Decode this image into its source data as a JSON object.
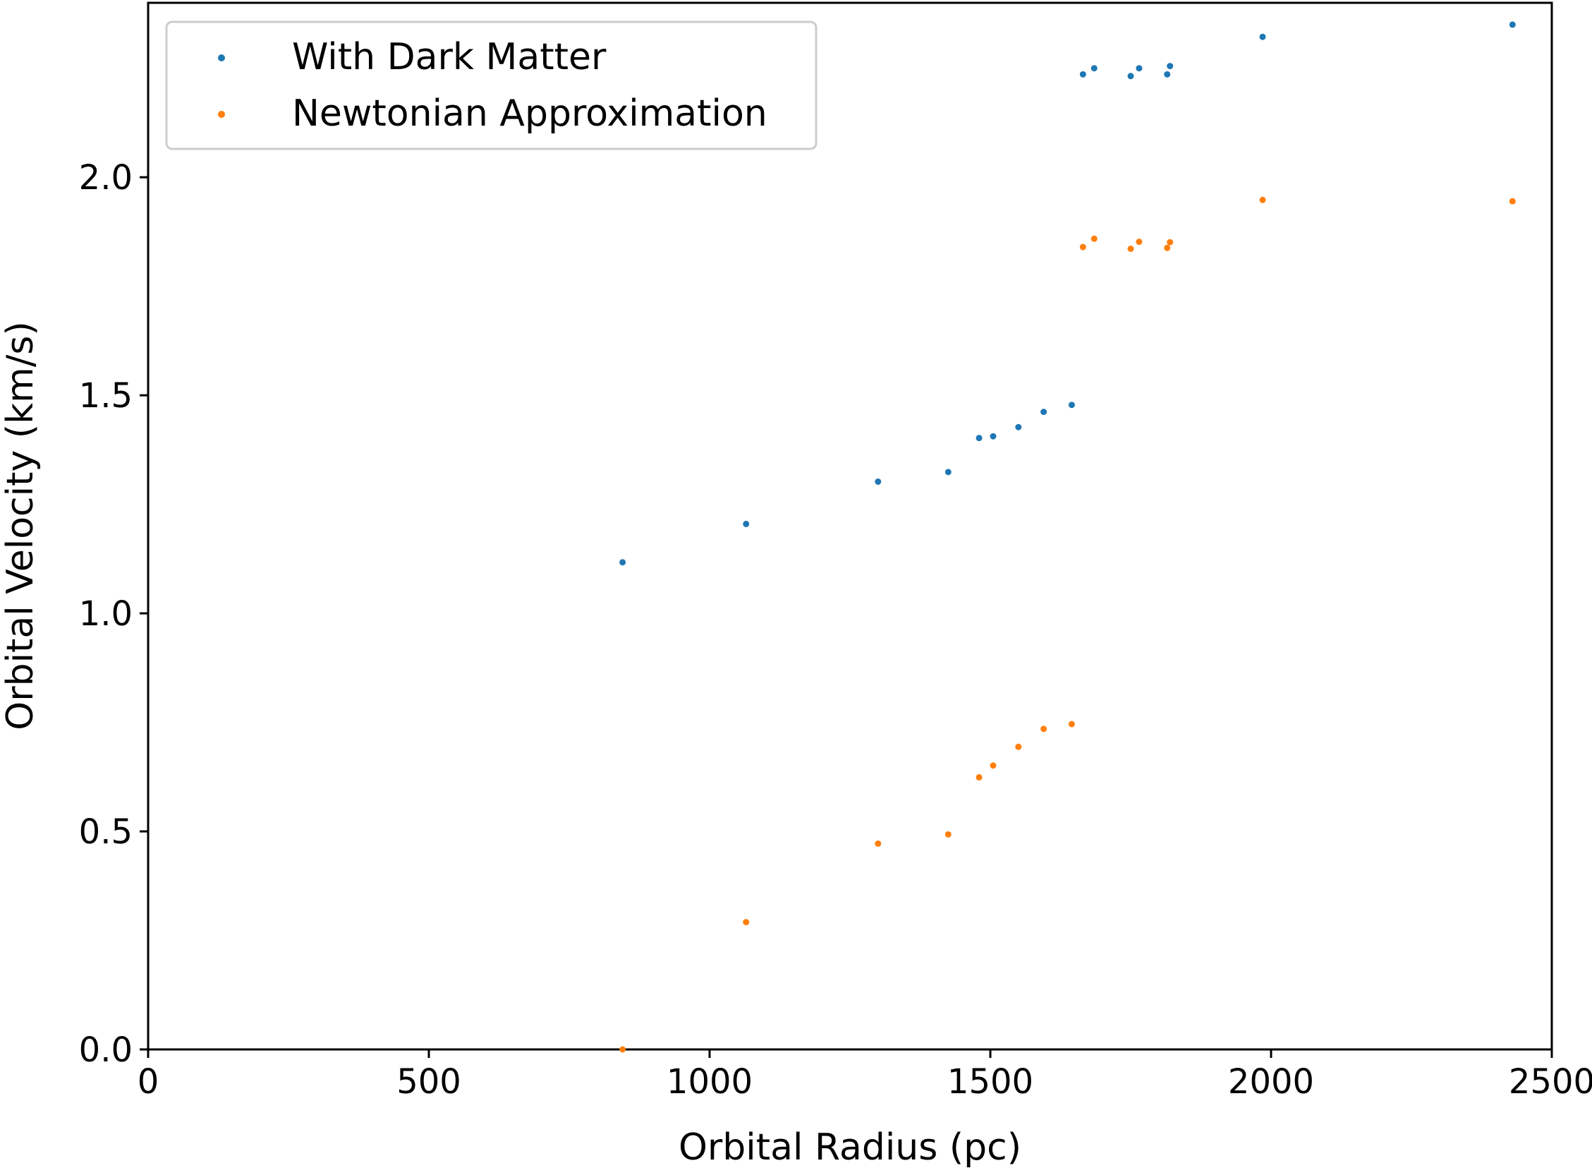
{
  "chart_data": {
    "type": "scatter",
    "title": "",
    "xlabel": "Orbital Radius (pc)",
    "ylabel": "Orbital Velocity (km/s)",
    "xlim": [
      0,
      2500
    ],
    "ylim": [
      0,
      2.4
    ],
    "xticks": [
      0,
      500,
      1000,
      1500,
      2000,
      2500
    ],
    "xtick_labels": [
      "0",
      "500",
      "1000",
      "1500",
      "2000",
      "2500"
    ],
    "yticks": [
      0.0,
      0.5,
      1.0,
      1.5,
      2.0
    ],
    "ytick_labels": [
      "0.0",
      "0.5",
      "1.0",
      "1.5",
      "2.0"
    ],
    "grid": false,
    "legend_position": "top-left",
    "series": [
      {
        "name": "With Dark Matter",
        "color": "#1f77b4",
        "points": [
          [
            845,
            1.117
          ],
          [
            1065,
            1.205
          ],
          [
            1300,
            1.302
          ],
          [
            1425,
            1.324
          ],
          [
            1480,
            1.402
          ],
          [
            1505,
            1.406
          ],
          [
            1550,
            1.427
          ],
          [
            1595,
            1.462
          ],
          [
            1645,
            1.478
          ],
          [
            1665,
            2.236
          ],
          [
            1685,
            2.25
          ],
          [
            1750,
            2.232
          ],
          [
            1765,
            2.25
          ],
          [
            1815,
            2.236
          ],
          [
            1820,
            2.255
          ],
          [
            1985,
            2.322
          ],
          [
            2430,
            2.35
          ]
        ]
      },
      {
        "name": "Newtonian Approximation",
        "color": "#ff7f0e",
        "points": [
          [
            845,
            0.0
          ],
          [
            1065,
            0.292
          ],
          [
            1300,
            0.472
          ],
          [
            1425,
            0.493
          ],
          [
            1480,
            0.624
          ],
          [
            1505,
            0.651
          ],
          [
            1550,
            0.694
          ],
          [
            1595,
            0.735
          ],
          [
            1645,
            0.746
          ],
          [
            1665,
            1.84
          ],
          [
            1685,
            1.859
          ],
          [
            1750,
            1.836
          ],
          [
            1765,
            1.852
          ],
          [
            1815,
            1.838
          ],
          [
            1820,
            1.851
          ],
          [
            1985,
            1.948
          ],
          [
            2430,
            1.945
          ]
        ]
      }
    ]
  }
}
